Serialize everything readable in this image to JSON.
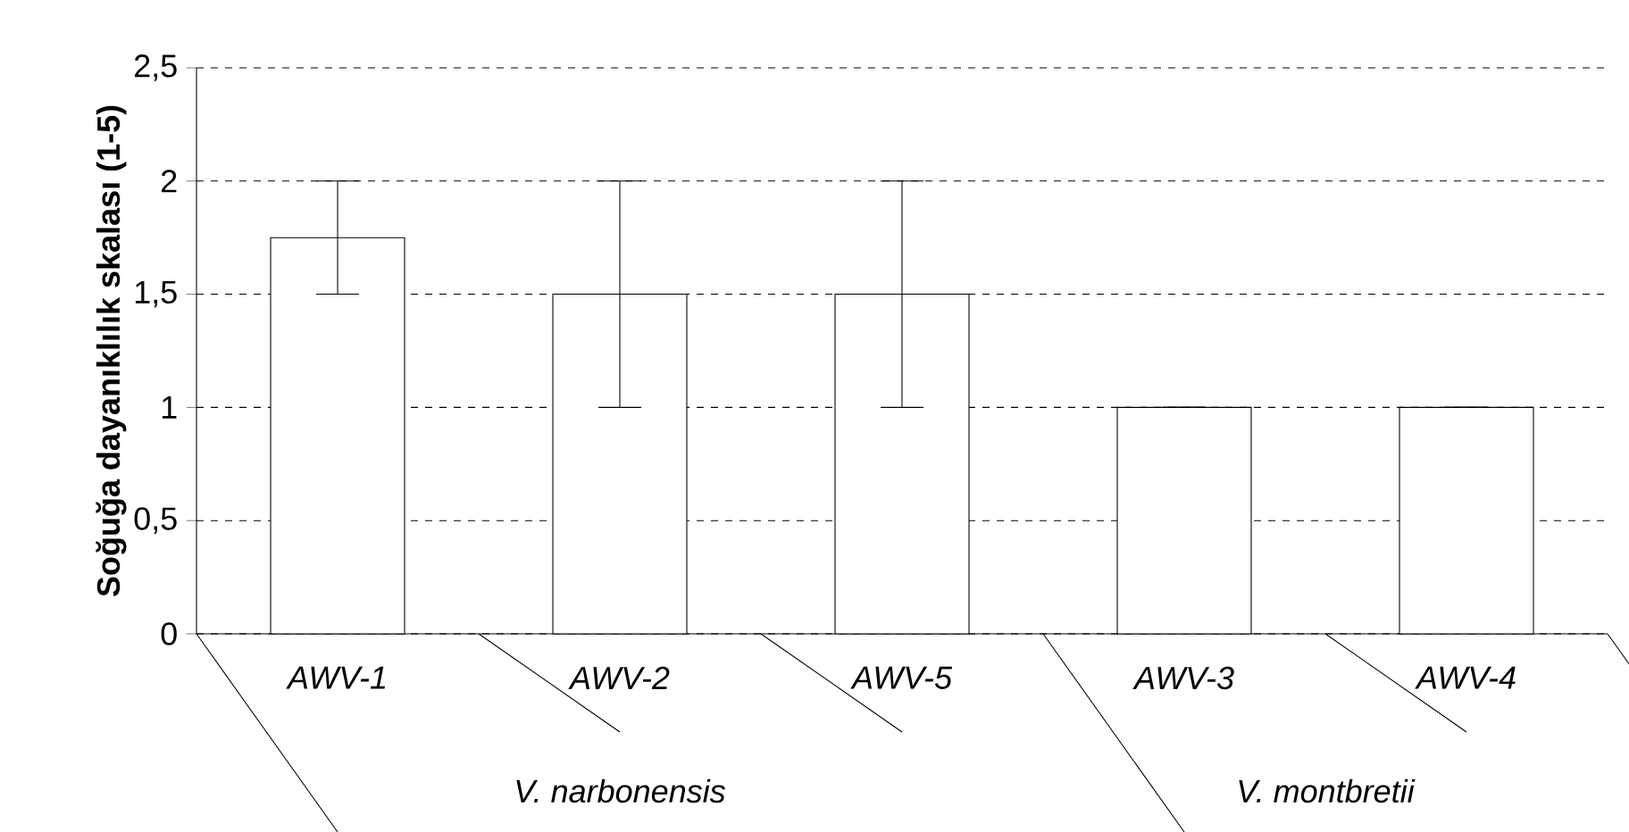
{
  "chart_data": {
    "type": "bar",
    "ylabel": "Soğuğa dayanıklılık skalası (1-5)",
    "categories": [
      "AWV-1",
      "AWV-2",
      "AWV-5",
      "AWV-3",
      "AWV-4"
    ],
    "values": [
      1.75,
      1.5,
      1.5,
      1,
      1
    ],
    "errors": [
      0.25,
      0.5,
      0.5,
      0,
      0
    ],
    "color": "#ffffff",
    "ylim": [
      0,
      2.5
    ],
    "yticks": [
      0,
      {
        "value": 0.5,
        "label": "0,5"
      },
      1,
      {
        "value": 1.5,
        "label": "1,5"
      },
      2,
      {
        "value": 2.5,
        "label": "2,5"
      }
    ],
    "grid": "y",
    "annotations": [
      "V. narbonensis",
      "V. montbretii"
    ]
  }
}
